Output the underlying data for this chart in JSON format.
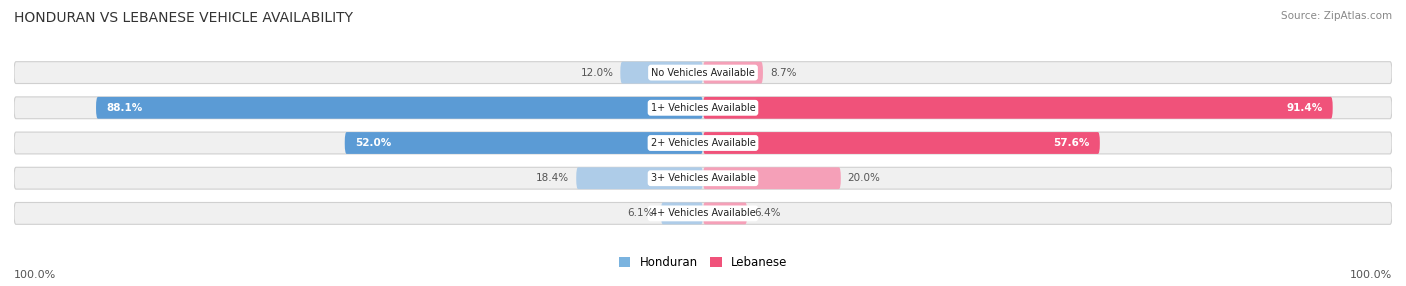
{
  "title": "HONDURAN VS LEBANESE VEHICLE AVAILABILITY",
  "source": "Source: ZipAtlas.com",
  "categories": [
    "No Vehicles Available",
    "1+ Vehicles Available",
    "2+ Vehicles Available",
    "3+ Vehicles Available",
    "4+ Vehicles Available"
  ],
  "honduran_values": [
    12.0,
    88.1,
    52.0,
    18.4,
    6.1
  ],
  "lebanese_values": [
    8.7,
    91.4,
    57.6,
    20.0,
    6.4
  ],
  "honduran_color_strong": "#5b9bd5",
  "honduran_color_light": "#aecce8",
  "lebanese_color_strong": "#f0527a",
  "lebanese_color_light": "#f5a0b8",
  "bg_color": "#ffffff",
  "bar_bg_color": "#e8e8e8",
  "max_val": 100.0,
  "bar_height": 0.62,
  "fig_width": 14.06,
  "fig_height": 2.86,
  "legend_honduran_color": "#7ab3df",
  "legend_lebanese_color": "#f0527a"
}
